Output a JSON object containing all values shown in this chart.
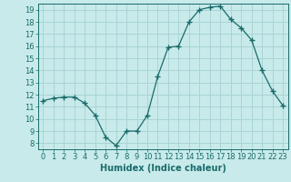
{
  "x": [
    0,
    1,
    2,
    3,
    4,
    5,
    6,
    7,
    8,
    9,
    10,
    11,
    12,
    13,
    14,
    15,
    16,
    17,
    18,
    19,
    20,
    21,
    22,
    23
  ],
  "y": [
    11.5,
    11.7,
    11.8,
    11.8,
    11.3,
    10.3,
    8.5,
    7.8,
    9.0,
    9.0,
    10.3,
    13.5,
    15.9,
    16.0,
    18.0,
    19.0,
    19.2,
    19.3,
    18.2,
    17.5,
    16.5,
    14.0,
    12.3,
    11.1
  ],
  "line_color": "#1a6b6b",
  "marker": "+",
  "marker_size": 4,
  "bg_color": "#c8eaea",
  "grid_color": "#aad4d4",
  "xlabel": "Humidex (Indice chaleur)",
  "xlim": [
    -0.5,
    23.5
  ],
  "ylim": [
    7.5,
    19.5
  ],
  "yticks": [
    8,
    9,
    10,
    11,
    12,
    13,
    14,
    15,
    16,
    17,
    18,
    19
  ],
  "xticks": [
    0,
    1,
    2,
    3,
    4,
    5,
    6,
    7,
    8,
    9,
    10,
    11,
    12,
    13,
    14,
    15,
    16,
    17,
    18,
    19,
    20,
    21,
    22,
    23
  ],
  "tick_color": "#1a6b6b",
  "label_fontsize": 7,
  "tick_fontsize": 6
}
